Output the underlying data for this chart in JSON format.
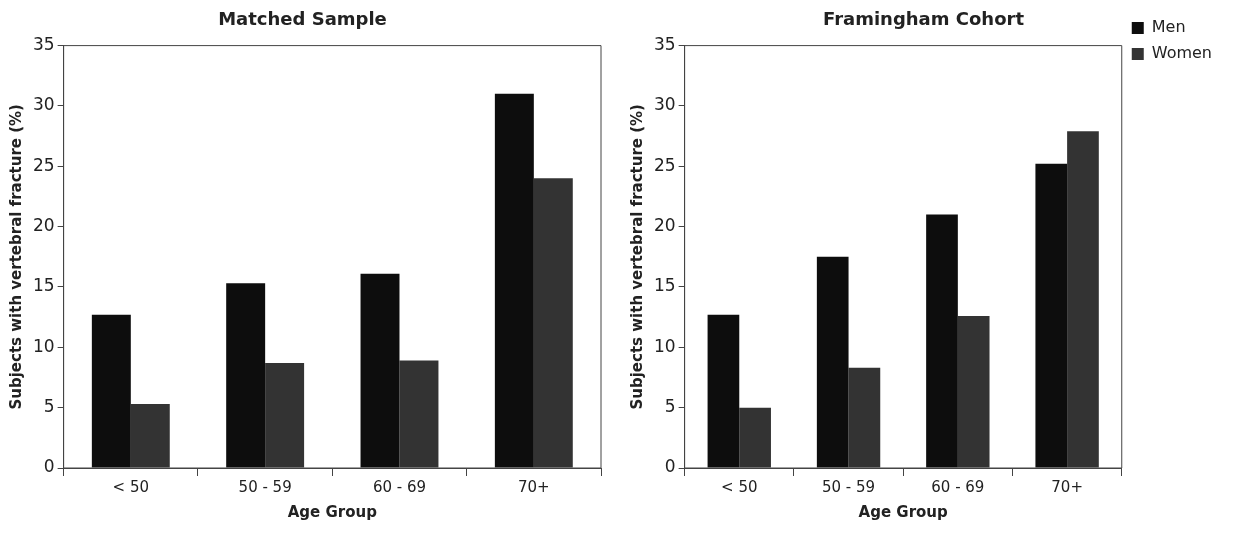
{
  "chart_data": [
    {
      "type": "bar",
      "title": "Matched Sample",
      "xlabel": "Age Group",
      "ylabel": "Subjects with vertebral fracture (%)",
      "categories": [
        "< 50",
        "50 - 59",
        "60 - 69",
        "70+"
      ],
      "series": [
        {
          "color": "#0d0d0d",
          "values": [
            12.7,
            15.3,
            16.1,
            31
          ]
        },
        {
          "color": "#333333",
          "values": [
            5.3,
            8.7,
            8.9,
            24
          ]
        }
      ],
      "ylim": [
        0,
        35
      ],
      "yticks": [
        0,
        5,
        10,
        15,
        20,
        25,
        30,
        35
      ],
      "grid": false,
      "legend": false
    },
    {
      "type": "bar",
      "title": "Framingham Cohort",
      "xlabel": "Age Group",
      "ylabel": "Subjects with vertebral fracture (%)",
      "categories": [
        "< 50",
        "50 - 59",
        "60 - 69",
        "70+"
      ],
      "series": [
        {
          "name": "Men",
          "color": "#0d0d0d",
          "values": [
            12.7,
            17.5,
            21,
            25.2
          ]
        },
        {
          "name": "Women",
          "color": "#333333",
          "values": [
            5,
            8.3,
            12.6,
            27.9
          ]
        }
      ],
      "ylim": [
        0,
        35
      ],
      "yticks": [
        0,
        5,
        10,
        15,
        20,
        25,
        30,
        35
      ],
      "grid": false,
      "legend": "top right"
    }
  ]
}
